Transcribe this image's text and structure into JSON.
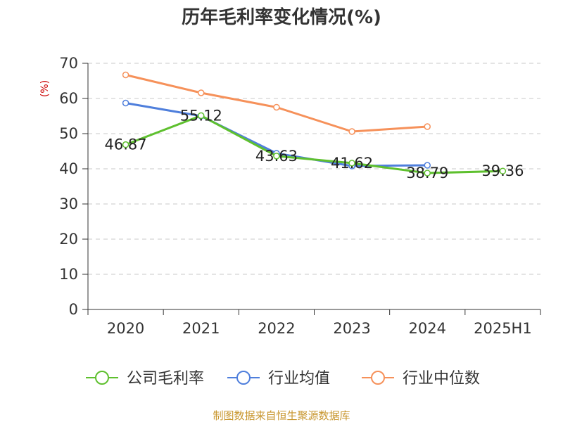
{
  "chart_data": {
    "type": "line",
    "title": "历年毛利率变化情况(%)",
    "ylabel": "(%)",
    "categories": [
      "2020",
      "2021",
      "2022",
      "2023",
      "2024",
      "2025H1"
    ],
    "yticks": [
      "0",
      "10",
      "20",
      "30",
      "40",
      "50",
      "60",
      "70"
    ],
    "ylim": [
      0,
      70
    ],
    "grid": true,
    "legend_position": "bottom",
    "series": [
      {
        "name": "公司毛利率",
        "color": "#5ec02e",
        "values": [
          46.87,
          55.12,
          43.63,
          41.62,
          38.79,
          39.36
        ],
        "labels": [
          "46.87",
          "55.12",
          "43.63",
          "41.62",
          "38.79",
          "39.36"
        ]
      },
      {
        "name": "行业均值",
        "color": "#4f7fdc",
        "values": [
          58.7,
          55.0,
          44.4,
          40.8,
          41.0,
          null
        ],
        "labels": []
      },
      {
        "name": "行业中位数",
        "color": "#f6915a",
        "values": [
          66.7,
          61.6,
          57.5,
          50.6,
          52.0,
          null
        ],
        "labels": []
      }
    ]
  },
  "source_text": "制图数据来自恒生聚源数据库"
}
